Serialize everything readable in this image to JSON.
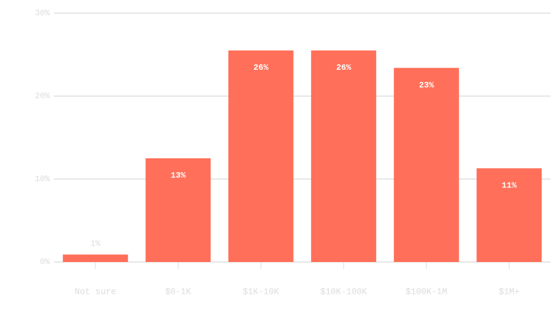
{
  "chart_data": {
    "type": "bar",
    "categories": [
      "Not sure",
      "$0-1K",
      "$1K-10K",
      "$10K-100K",
      "$100K-1M",
      "$1M+"
    ],
    "values": [
      0.9,
      12.5,
      25.5,
      25.5,
      23.4,
      11.3
    ],
    "value_labels": [
      "1%",
      "13%",
      "26%",
      "26%",
      "23%",
      "11%"
    ],
    "color": "#ff6f59",
    "ylim": [
      0,
      30
    ],
    "yticks": [
      {
        "value": 0,
        "label": "0%"
      },
      {
        "value": 10,
        "label": "10%"
      },
      {
        "value": 20,
        "label": "20%"
      },
      {
        "value": 30,
        "label": "30%"
      }
    ],
    "grid": true
  }
}
